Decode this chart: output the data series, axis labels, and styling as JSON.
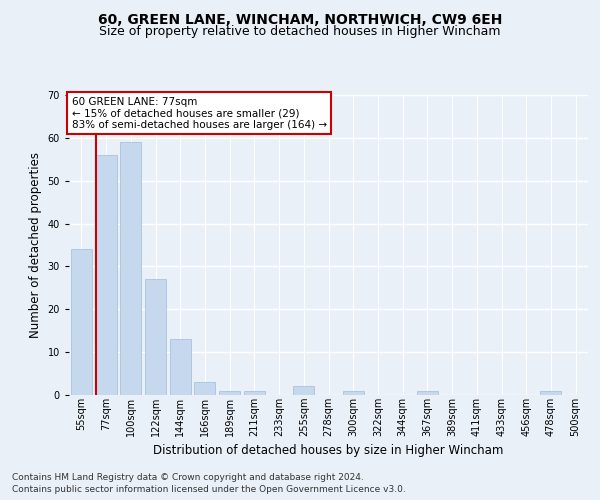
{
  "title1": "60, GREEN LANE, WINCHAM, NORTHWICH, CW9 6EH",
  "title2": "Size of property relative to detached houses in Higher Wincham",
  "xlabel": "Distribution of detached houses by size in Higher Wincham",
  "ylabel": "Number of detached properties",
  "footer1": "Contains HM Land Registry data © Crown copyright and database right 2024.",
  "footer2": "Contains public sector information licensed under the Open Government Licence v3.0.",
  "annotation_line1": "60 GREEN LANE: 77sqm",
  "annotation_line2": "← 15% of detached houses are smaller (29)",
  "annotation_line3": "83% of semi-detached houses are larger (164) →",
  "bar_labels": [
    "55sqm",
    "77sqm",
    "100sqm",
    "122sqm",
    "144sqm",
    "166sqm",
    "189sqm",
    "211sqm",
    "233sqm",
    "255sqm",
    "278sqm",
    "300sqm",
    "322sqm",
    "344sqm",
    "367sqm",
    "389sqm",
    "411sqm",
    "433sqm",
    "456sqm",
    "478sqm",
    "500sqm"
  ],
  "bar_values": [
    34,
    56,
    59,
    27,
    13,
    3,
    1,
    1,
    0,
    2,
    0,
    1,
    0,
    0,
    1,
    0,
    0,
    0,
    0,
    1,
    0
  ],
  "bar_color": "#c5d8ed",
  "bar_edge_color": "#a0bcd8",
  "red_line_index": 1,
  "ylim": [
    0,
    70
  ],
  "yticks": [
    0,
    10,
    20,
    30,
    40,
    50,
    60,
    70
  ],
  "bg_color": "#eaf0f8",
  "plot_bg_color": "#eaf0f8",
  "grid_color": "#ffffff",
  "annotation_box_color": "#ffffff",
  "annotation_box_edge": "#cc0000",
  "red_line_color": "#cc0000",
  "title1_fontsize": 10,
  "title2_fontsize": 9,
  "xlabel_fontsize": 8.5,
  "ylabel_fontsize": 8.5,
  "tick_fontsize": 7,
  "annotation_fontsize": 7.5,
  "footer_fontsize": 6.5
}
